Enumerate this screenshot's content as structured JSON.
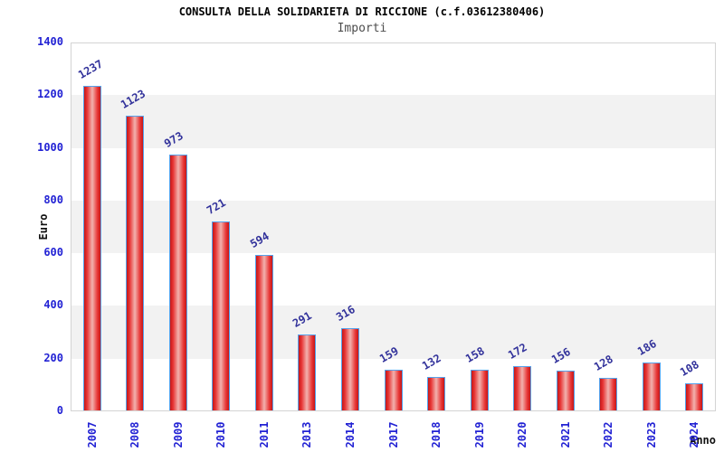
{
  "title": "CONSULTA DELLA SOLIDARIETA DI RICCIONE (c.f.03612380406)",
  "subtitle": "Importi",
  "chart_data": {
    "type": "bar",
    "title": "CONSULTA DELLA SOLIDARIETA DI RICCIONE (c.f.03612380406)",
    "subtitle": "Importi",
    "xlabel": "Anno",
    "ylabel": "Euro",
    "categories": [
      "2007",
      "2008",
      "2009",
      "2010",
      "2011",
      "2013",
      "2014",
      "2017",
      "2018",
      "2019",
      "2020",
      "2021",
      "2022",
      "2023",
      "2024"
    ],
    "values": [
      1237,
      1123,
      973,
      721,
      594,
      291,
      316,
      159,
      132,
      158,
      172,
      156,
      128,
      186,
      108
    ],
    "ylim": [
      0,
      1400
    ],
    "ytick_step": 200,
    "yticks": [
      0,
      200,
      400,
      600,
      800,
      1000,
      1200,
      1400
    ],
    "grid": "alternating-horizontal-bands",
    "legend_position": "none",
    "value_labels_shown": true
  },
  "colors": {
    "background": "#ffffff",
    "band_white": "#ffffff",
    "band_gray": "#f2f2f2",
    "plot_border": "#d4d4d4",
    "bar_border": "#55a2ec",
    "bar_edge_red": "#c51717",
    "bar_mid_red": "#e73535",
    "bar_center_light": "#f2b2ae",
    "axis_tick_label": "#2222d4",
    "value_label": "#32329b",
    "title_text": "#000000",
    "subtitle_text": "#4d4d4d"
  }
}
